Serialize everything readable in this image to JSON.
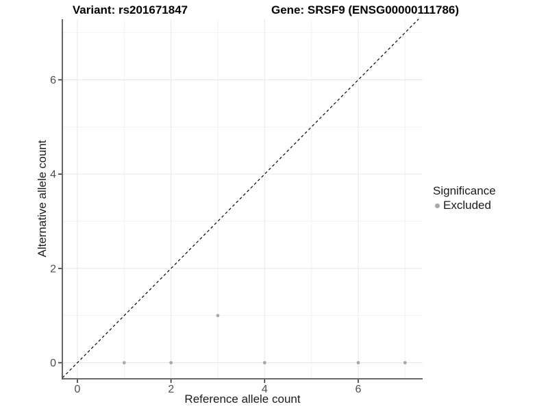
{
  "chart_data": {
    "type": "scatter",
    "title_left": "Variant: rs201671847",
    "title_right": "Gene: SRSF9 (ENSG00000111786)",
    "xlabel": "Reference allele count",
    "ylabel": "Alternative allele count",
    "x_ticks": [
      0,
      2,
      4,
      6
    ],
    "y_ticks": [
      0,
      2,
      4,
      6
    ],
    "x_minor_gridlines": [
      1,
      3,
      5,
      7
    ],
    "y_minor_gridlines": [
      1,
      3,
      5,
      7
    ],
    "xlim": [
      -0.32,
      7.37
    ],
    "ylim": [
      -0.34,
      7.29
    ],
    "grid": true,
    "series": [
      {
        "name": "Excluded",
        "color": "#a8a8a8",
        "points": [
          [
            1,
            0
          ],
          [
            2,
            0
          ],
          [
            3,
            1
          ],
          [
            4,
            0
          ],
          [
            6,
            0
          ],
          [
            7,
            0
          ]
        ]
      }
    ],
    "reference_line": {
      "kind": "identity_abline",
      "style": "dashed",
      "color": "#000000"
    },
    "legend": {
      "position": "right",
      "title": "Significance",
      "entries": [
        {
          "label": "Excluded",
          "color": "#a8a8a8"
        }
      ]
    },
    "colors": {
      "point": "#a8a8a8",
      "axis_line": "#555555",
      "tick_mark": "#333333",
      "major_gridline": "#e7e7e7",
      "minor_gridline": "#f2f2f2",
      "background": "#ffffff"
    }
  }
}
